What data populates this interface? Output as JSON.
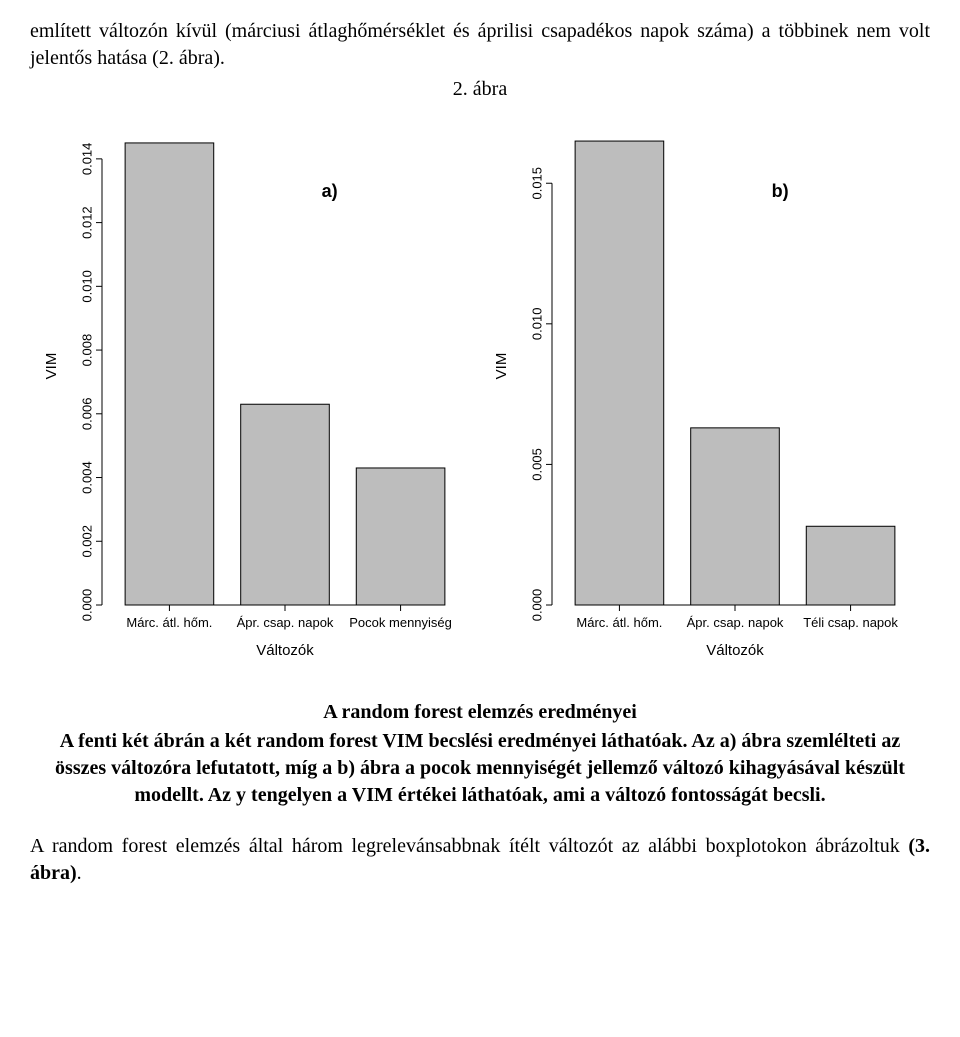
{
  "paragraph_top": "említett változón kívül (márciusi átlaghőmérséklet és áprilisi csapadékos napok száma) a többinek nem volt jelentős hatása (2. ábra).",
  "fig_label": "2. ábra",
  "chart_common": {
    "ylabel": "VIM",
    "xlabel": "Változók",
    "bar_color": "#bdbdbd",
    "bar_border": "#000000",
    "axis_color": "#000000",
    "tick_font_size": 13,
    "label_font_size": 15,
    "panel_label_font_size": 18,
    "bar_width": 0.92,
    "bg_color": "#ffffff",
    "font_family": "Arial, Helvetica, sans-serif"
  },
  "chart_a": {
    "panel_label": "a)",
    "categories": [
      "Márc. átl. hőm.",
      "Ápr. csap. napok",
      "Pocok mennyiség"
    ],
    "values": [
      0.0145,
      0.0063,
      0.0043
    ],
    "ylim": [
      0,
      0.015
    ],
    "yticks": [
      0.0,
      0.002,
      0.004,
      0.006,
      0.008,
      0.01,
      0.012,
      0.014
    ],
    "ytick_labels": [
      "0.000",
      "0.002",
      "0.004",
      "0.006",
      "0.008",
      "0.010",
      "0.012",
      "0.014"
    ]
  },
  "chart_b": {
    "panel_label": "b)",
    "categories": [
      "Márc. átl. hőm.",
      "Ápr. csap. napok",
      "Téli csap. napok"
    ],
    "values": [
      0.0165,
      0.0063,
      0.0028
    ],
    "ylim": [
      0,
      0.017
    ],
    "yticks": [
      0.0,
      0.005,
      0.01,
      0.015
    ],
    "ytick_labels": [
      "0.000",
      "0.005",
      "0.010",
      "0.015"
    ]
  },
  "caption": {
    "title": "A random forest elemzés eredményei",
    "body_1": "A fenti két ábrán a két random forest VIM becslési eredményei láthatóak. Az a) ábra szemlélteti az összes változóra lefutatott, míg a b) ábra a pocok mennyiségét jellemző változó kihagyásával készült modellt. Az y tengelyen a VIM értékei láthatóak, ami a változó fontosságát becsli."
  },
  "closing_1": "A random forest elemzés által három legrelevánsabbnak ítélt változót az alábbi boxplotokon ábrázoltuk ",
  "closing_bold": "(3. ábra)",
  "closing_2": "."
}
